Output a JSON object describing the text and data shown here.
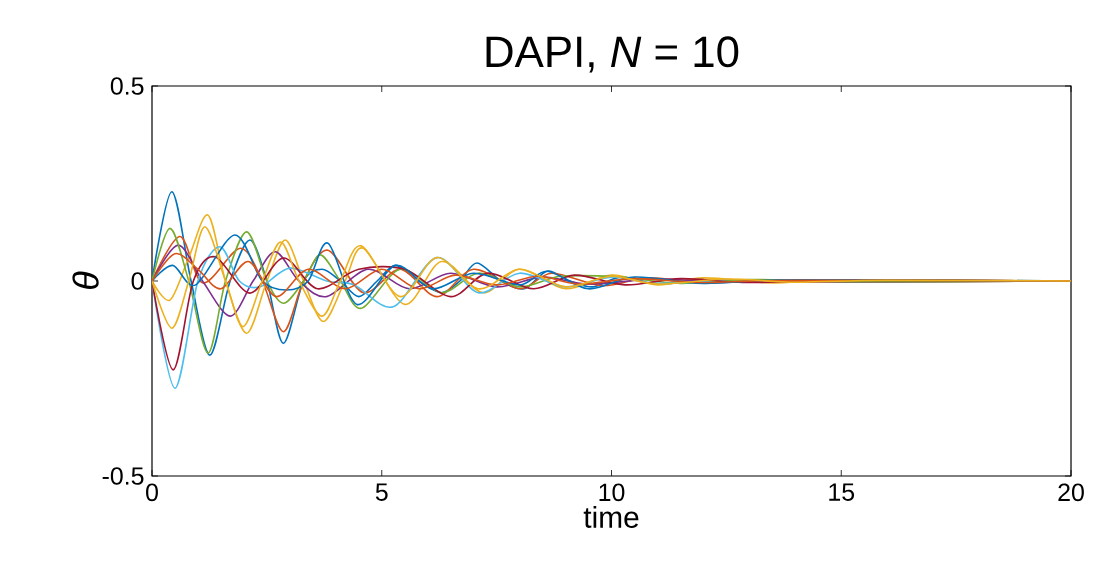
{
  "chart_data": {
    "type": "line",
    "title": "DAPI, *N* = 10",
    "xlabel": "time",
    "ylabel": "θ",
    "xlim": [
      0,
      20
    ],
    "ylim": [
      -0.5,
      0.5
    ],
    "xticks": [
      0,
      5,
      10,
      15,
      20
    ],
    "yticks": [
      -0.5,
      0,
      0.5
    ],
    "grid": false,
    "marker": "none",
    "line_style": "solid",
    "series": [
      {
        "color": "#0072bd",
        "x": [
          0,
          0.43,
          0.85,
          1.26,
          1.7,
          2.13,
          2.5,
          2.86,
          3.3,
          3.7,
          4.1,
          4.5,
          4.9,
          5.3,
          5.8,
          6.3,
          6.7,
          7.07,
          7.6,
          8.1,
          8.6,
          9.1,
          9.6,
          10.2,
          11,
          12
        ],
        "values": [
          0,
          0.229,
          0,
          -0.19,
          0,
          0.105,
          0,
          -0.16,
          0,
          0.03,
          0,
          -0.04,
          0,
          0.04,
          0,
          -0.03,
          0,
          0.046,
          0,
          -0.02,
          0.025,
          0,
          -0.015,
          0.01,
          -0.008,
          0.005
        ]
      },
      {
        "color": "#d95319",
        "x": [
          0,
          0.61,
          1.11,
          1.92,
          2.4,
          2.86,
          3.3,
          3.83,
          4.6,
          5.4,
          6.2,
          7,
          8,
          8.7,
          9.8,
          10.8,
          12,
          13.5,
          15,
          20
        ],
        "values": [
          0,
          0.114,
          -0.005,
          0.084,
          0,
          -0.13,
          0,
          0.079,
          -0.03,
          0.03,
          -0.04,
          0.03,
          -0.02,
          0.02,
          -0.012,
          0.008,
          -0.005,
          0.003,
          -0.002,
          0
        ]
      },
      {
        "color": "#edb120",
        "x": [
          0,
          0.39,
          0.8,
          1.22,
          1.6,
          2.06,
          2.5,
          2.9,
          3.3,
          3.73,
          4.2,
          4.6,
          5.5,
          6.3,
          7.2,
          8,
          9,
          10,
          11,
          12,
          13.5,
          15,
          20
        ],
        "values": [
          0,
          -0.049,
          0.06,
          0.169,
          0,
          -0.134,
          0,
          0.105,
          0,
          -0.104,
          0,
          0.084,
          -0.06,
          0.05,
          -0.03,
          0.03,
          -0.02,
          0.015,
          -0.01,
          0.008,
          -0.005,
          0.003,
          0
        ]
      },
      {
        "color": "#7e2f8e",
        "x": [
          0,
          0.57,
          1.1,
          1.7,
          2.2,
          2.68,
          3.2,
          3.8,
          4.7,
          5.6,
          6.5,
          7.5,
          8.5,
          9.5,
          11,
          13,
          20
        ],
        "values": [
          0,
          0.092,
          0,
          -0.09,
          0,
          0.075,
          0,
          -0.04,
          0.03,
          -0.02,
          0.02,
          -0.015,
          0.01,
          -0.008,
          0.005,
          -0.003,
          0
        ]
      },
      {
        "color": "#77ac30",
        "x": [
          0,
          0.39,
          0.8,
          1.22,
          1.6,
          2.06,
          2.5,
          2.86,
          3.3,
          3.66,
          4.1,
          4.56,
          5.4,
          6.3,
          7.1,
          8,
          8.9,
          10.2,
          11.5,
          13,
          15,
          20
        ],
        "values": [
          0,
          0.135,
          0,
          -0.185,
          0,
          0.126,
          0,
          -0.057,
          0,
          0.067,
          0,
          -0.07,
          0.03,
          -0.03,
          0.02,
          -0.015,
          0.012,
          0.01,
          -0.006,
          0.004,
          -0.002,
          0
        ]
      },
      {
        "color": "#4dbeee",
        "x": [
          0,
          0.5,
          1,
          1.48,
          1.9,
          2.35,
          3,
          3.8,
          4.4,
          5.25,
          6.2,
          7.1,
          8,
          9,
          10,
          11,
          12.5
        ],
        "values": [
          0,
          -0.275,
          0,
          0.088,
          0,
          -0.015,
          0.033,
          0,
          -0.01,
          -0.066,
          0.06,
          -0.03,
          0.02,
          -0.015,
          0.01,
          -0.006,
          0.004
        ]
      },
      {
        "color": "#a2142f",
        "x": [
          0,
          0.46,
          0.9,
          1.37,
          2.13,
          2.86,
          3.6,
          4.5,
          5.5,
          6.5,
          7.3,
          8.3,
          9.2,
          10.3,
          11.5,
          13,
          15,
          20
        ],
        "values": [
          0,
          -0.228,
          0,
          0.062,
          -0.031,
          0.059,
          -0.02,
          0.03,
          0.03,
          -0.04,
          0.02,
          -0.02,
          0.015,
          -0.01,
          0.006,
          -0.004,
          0.002,
          0
        ]
      },
      {
        "color": "#0072bd",
        "x": [
          0,
          0.45,
          0.95,
          1.8,
          2.4,
          2.93,
          3.4,
          3.83,
          4.46,
          5.3,
          6.1,
          7,
          8,
          8.6,
          9.5,
          10.5,
          12,
          14,
          20
        ],
        "values": [
          0,
          0.04,
          -0.01,
          0.118,
          0,
          -0.023,
          0,
          0.097,
          -0.06,
          0.04,
          -0.02,
          0.02,
          -0.01,
          0.025,
          -0.02,
          0.01,
          -0.006,
          0.003,
          0
        ]
      },
      {
        "color": "#d95319",
        "x": [
          0,
          0.5,
          1,
          1.5,
          2.1,
          2.7,
          3.4,
          4.2,
          5,
          5.8,
          6.6,
          7.5,
          8.4,
          9.3,
          10.5,
          12,
          14,
          20
        ],
        "values": [
          0,
          0.07,
          0.03,
          -0.02,
          0.05,
          -0.04,
          0.03,
          -0.02,
          0.03,
          -0.02,
          0.015,
          -0.01,
          0.012,
          -0.008,
          0.006,
          -0.004,
          0.002,
          0
        ]
      },
      {
        "color": "#edb120",
        "x": [
          0,
          0.43,
          0.8,
          1.15,
          1.6,
          1.98,
          2.4,
          2.8,
          3.2,
          3.7,
          4.1,
          4.55,
          5.4,
          6.2,
          7.1,
          8,
          9,
          10,
          11,
          12.5,
          14,
          16,
          20
        ],
        "values": [
          0,
          -0.121,
          0,
          0.139,
          0,
          -0.117,
          0,
          0.1,
          0,
          -0.09,
          0,
          0.09,
          -0.04,
          0.06,
          -0.02,
          0.03,
          -0.015,
          0.012,
          -0.008,
          0.005,
          -0.003,
          0.002,
          0
        ]
      }
    ]
  }
}
